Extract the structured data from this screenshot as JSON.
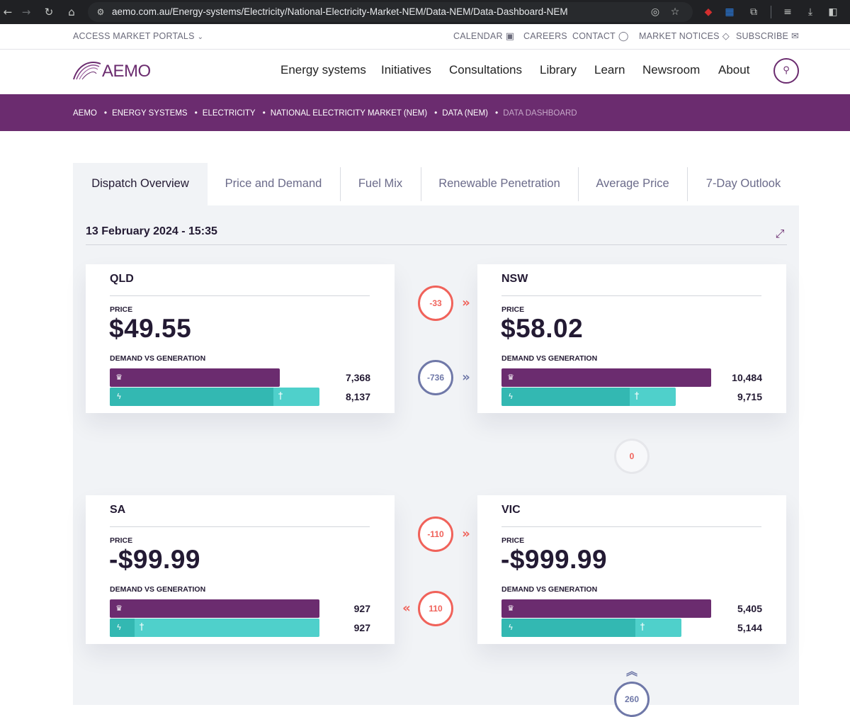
{
  "browser": {
    "url": "aemo.com.au/Energy-systems/Electricity/National-Electricity-Market-NEM/Data-NEM/Data-Dashboard-NEM"
  },
  "utility": {
    "portals": "ACCESS MARKET PORTALS",
    "calendar": "CALENDAR",
    "careers": "CAREERS",
    "contact": "CONTACT",
    "notices": "MARKET NOTICES",
    "subscribe": "SUBSCRIBE"
  },
  "header": {
    "logo": "AEMO",
    "menu": [
      "Energy systems",
      "Initiatives",
      "Consultations",
      "Library",
      "Learn",
      "Newsroom",
      "About"
    ]
  },
  "breadcrumb": [
    "AEMO",
    "ENERGY SYSTEMS",
    "ELECTRICITY",
    "NATIONAL ELECTRICITY MARKET (NEM)",
    "DATA (NEM)",
    "DATA DASHBOARD"
  ],
  "tabs": [
    "Dispatch Overview",
    "Price and Demand",
    "Fuel Mix",
    "Renewable Penetration",
    "Average Price",
    "7-Day Outlook"
  ],
  "dashboard": {
    "datetime": "13 February 2024 - 15:35",
    "price_label": "PRICE",
    "dg_label": "DEMAND VS GENERATION",
    "regions": {
      "qld": {
        "name": "QLD",
        "price": "$49.55",
        "demand": "7,368",
        "generation": "8,137",
        "demand_mw": 7368,
        "generation_mw": 8137
      },
      "nsw": {
        "name": "NSW",
        "price": "$58.02",
        "demand": "10,484",
        "generation": "9,715",
        "demand_mw": 10484,
        "generation_mw": 9715
      },
      "sa": {
        "name": "SA",
        "price": "-$99.99",
        "demand": "927",
        "generation": "927",
        "demand_mw": 927,
        "generation_mw": 927
      },
      "vic": {
        "name": "VIC",
        "price": "-$999.99",
        "demand": "5,405",
        "generation": "5,144",
        "demand_mw": 5405,
        "generation_mw": 5144
      }
    },
    "flows": {
      "qld_nsw_1": "-33",
      "qld_nsw_2": "-736",
      "nsw_tas": "0",
      "sa_vic_1": "-110",
      "sa_vic_2": "110",
      "vic_tas": "260"
    },
    "colors": {
      "brand": "#6b2c6f",
      "generation": "#4fd0cb",
      "flow_red": "#f0625a",
      "flow_blue": "#6f78a8"
    }
  }
}
